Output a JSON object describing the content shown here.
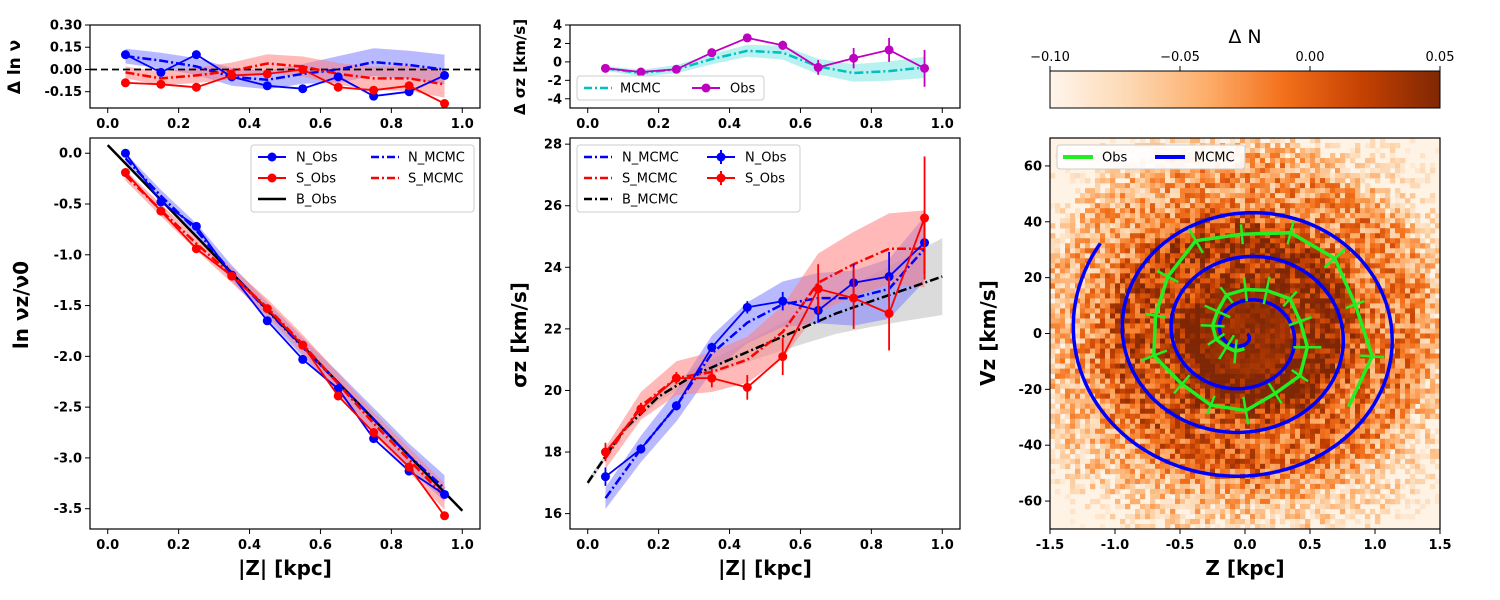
{
  "colors": {
    "north": "#0000ff",
    "south": "#ff0000",
    "both": "#000000",
    "mcmc_cyan": "#00bfbf",
    "obs_magenta": "#c000c0",
    "obs_green": "#22ee22",
    "band_blue": "#7f7fff",
    "band_red": "#ff7f7f",
    "band_grey": "#bdbdbd",
    "band_cyan": "#7fe5e5"
  },
  "chart_data": [
    {
      "id": "dlnnu",
      "type": "line",
      "ylabel": "Δ ln ν",
      "xlim": [
        -0.05,
        1.05
      ],
      "ylim": [
        -0.26,
        0.3
      ],
      "xticks": [
        "0.0",
        "0.2",
        "0.4",
        "0.6",
        "0.8",
        "1.0"
      ],
      "yticks": [
        "0.30",
        "0.15",
        "0.00",
        "-0.15"
      ],
      "x": [
        0.05,
        0.15,
        0.25,
        0.35,
        0.45,
        0.55,
        0.65,
        0.75,
        0.85,
        0.95
      ],
      "series": [
        {
          "name": "N_Obs",
          "values": [
            0.1,
            -0.02,
            0.1,
            -0.05,
            -0.11,
            -0.13,
            -0.05,
            -0.18,
            -0.15,
            -0.04
          ]
        },
        {
          "name": "S_Obs",
          "values": [
            -0.09,
            -0.1,
            -0.12,
            -0.04,
            -0.03,
            0.0,
            -0.12,
            -0.14,
            -0.11,
            -0.23
          ]
        },
        {
          "name": "N_MCMC",
          "values": [
            0.09,
            0.06,
            0.02,
            -0.05,
            -0.07,
            -0.03,
            0.0,
            0.05,
            0.03,
            0.0
          ]
        },
        {
          "name": "S_MCMC",
          "values": [
            -0.02,
            -0.06,
            -0.04,
            -0.01,
            0.04,
            0.02,
            -0.03,
            -0.06,
            -0.06,
            -0.1
          ]
        }
      ],
      "reference_line": 0.0
    },
    {
      "id": "dsigma",
      "type": "line",
      "ylabel": "Δ σz [km/s]",
      "xlim": [
        -0.05,
        1.05
      ],
      "ylim": [
        -5,
        4
      ],
      "xticks": [
        "0.0",
        "0.2",
        "0.4",
        "0.6",
        "0.8",
        "1.0"
      ],
      "yticks": [
        "4",
        "2",
        "0",
        "-2",
        "-4"
      ],
      "x": [
        0.05,
        0.15,
        0.25,
        0.35,
        0.45,
        0.55,
        0.65,
        0.75,
        0.85,
        0.95
      ],
      "legend": [
        "MCMC",
        "Obs"
      ],
      "series": [
        {
          "name": "MCMC",
          "values": [
            -0.7,
            -1.2,
            -0.8,
            0.3,
            1.2,
            1.0,
            -0.5,
            -1.2,
            -1.0,
            -0.6
          ]
        },
        {
          "name": "Obs",
          "values": [
            -0.7,
            -1.1,
            -0.8,
            1.0,
            2.6,
            1.8,
            -0.6,
            0.4,
            1.3,
            -0.7
          ],
          "errors": [
            0.3,
            0.2,
            0.2,
            0.3,
            0.4,
            0.5,
            0.8,
            1.1,
            1.3,
            2.0
          ]
        }
      ]
    },
    {
      "id": "lnnu",
      "type": "line",
      "xlabel": "|Z| [kpc]",
      "ylabel": "ln νz/ν0",
      "xlim": [
        -0.05,
        1.05
      ],
      "ylim": [
        -3.7,
        0.15
      ],
      "xticks": [
        "0.0",
        "0.2",
        "0.4",
        "0.6",
        "0.8",
        "1.0"
      ],
      "yticks": [
        "0.0",
        "-0.5",
        "-1.0",
        "-1.5",
        "-2.0",
        "-2.5",
        "-3.0",
        "-3.5"
      ],
      "x": [
        0.05,
        0.15,
        0.25,
        0.35,
        0.45,
        0.55,
        0.65,
        0.75,
        0.85,
        0.95
      ],
      "legend": [
        "N_Obs",
        "N_MCMC",
        "S_Obs",
        "S_MCMC",
        "B_Obs"
      ],
      "series": [
        {
          "name": "N_Obs",
          "values": [
            0.0,
            -0.48,
            -0.72,
            -1.2,
            -1.65,
            -2.03,
            -2.32,
            -2.81,
            -3.13,
            -3.36
          ]
        },
        {
          "name": "S_Obs",
          "values": [
            -0.19,
            -0.57,
            -0.94,
            -1.21,
            -1.53,
            -1.89,
            -2.39,
            -2.75,
            -3.09,
            -3.57
          ]
        },
        {
          "name": "N_MCMC",
          "values": [
            -0.05,
            -0.42,
            -0.76,
            -1.18,
            -1.55,
            -1.91,
            -2.26,
            -2.62,
            -2.98,
            -3.3
          ]
        },
        {
          "name": "S_MCMC",
          "values": [
            -0.22,
            -0.56,
            -0.89,
            -1.2,
            -1.52,
            -1.88,
            -2.27,
            -2.66,
            -3.02,
            -3.38
          ]
        },
        {
          "name": "B_Obs",
          "x": [
            0.0,
            1.0
          ],
          "values": [
            0.08,
            -3.52
          ]
        }
      ]
    },
    {
      "id": "sigma",
      "type": "line",
      "xlabel": "|Z| [kpc]",
      "ylabel": "σz [km/s]",
      "xlim": [
        -0.05,
        1.05
      ],
      "ylim": [
        15.5,
        28.2
      ],
      "xticks": [
        "0.0",
        "0.2",
        "0.4",
        "0.6",
        "0.8",
        "1.0"
      ],
      "yticks": [
        "28",
        "26",
        "24",
        "22",
        "20",
        "18",
        "16"
      ],
      "x": [
        0.05,
        0.15,
        0.25,
        0.35,
        0.45,
        0.55,
        0.65,
        0.75,
        0.85,
        0.95
      ],
      "legend": [
        "N_MCMC",
        "N_Obs",
        "S_MCMC",
        "S_Obs",
        "B_MCMC"
      ],
      "series": [
        {
          "name": "N_Obs",
          "values": [
            17.2,
            18.1,
            19.5,
            21.4,
            22.7,
            22.9,
            22.6,
            23.5,
            23.7,
            24.8
          ],
          "errors": [
            0.3,
            0.15,
            0.15,
            0.15,
            0.2,
            0.3,
            0.4,
            0.6,
            0.8,
            1.0
          ]
        },
        {
          "name": "S_Obs",
          "values": [
            18.0,
            19.4,
            20.4,
            20.4,
            20.1,
            21.1,
            23.3,
            23.0,
            22.5,
            25.6
          ],
          "errors": [
            0.3,
            0.2,
            0.2,
            0.3,
            0.4,
            0.6,
            0.8,
            1.0,
            1.2,
            2.0
          ]
        },
        {
          "name": "N_MCMC",
          "x": [
            0.05,
            0.15,
            0.25,
            0.35,
            0.45,
            0.55,
            0.65,
            0.75,
            0.85,
            0.95
          ],
          "values": [
            16.5,
            18.1,
            19.5,
            21.2,
            22.2,
            22.8,
            23.0,
            23.0,
            23.3,
            24.6
          ]
        },
        {
          "name": "S_MCMC",
          "x": [
            0.05,
            0.15,
            0.25,
            0.35,
            0.45,
            0.55,
            0.65,
            0.75,
            0.85,
            0.95
          ],
          "values": [
            17.8,
            19.5,
            20.4,
            20.6,
            21.0,
            21.9,
            23.5,
            24.1,
            24.6,
            24.6
          ]
        },
        {
          "name": "B_MCMC",
          "x": [
            0.0,
            0.1,
            0.2,
            0.3,
            0.4,
            0.5,
            0.6,
            0.7,
            0.8,
            0.9,
            1.0
          ],
          "values": [
            17.0,
            18.7,
            19.8,
            20.5,
            21.0,
            21.5,
            22.0,
            22.5,
            22.9,
            23.3,
            23.7
          ]
        }
      ]
    },
    {
      "id": "phase",
      "type": "heatmap",
      "xlabel": "Z [kpc]",
      "ylabel": "Vz [km/s]",
      "xlim": [
        -1.5,
        1.5
      ],
      "ylim": [
        -70,
        70
      ],
      "xticks": [
        "-1.5",
        "-1.0",
        "-0.5",
        "0.0",
        "0.5",
        "1.0",
        "1.5"
      ],
      "yticks": [
        "60",
        "40",
        "20",
        "0",
        "-20",
        "-40",
        "-60"
      ],
      "legend": [
        "Obs",
        "MCMC"
      ],
      "colorbar": {
        "label": "Δ N",
        "range": [
          -0.1,
          0.05
        ],
        "ticks": [
          "−0.10",
          "−0.05",
          "0.00",
          "0.05"
        ]
      },
      "spiral_model": {
        "name": "MCMC",
        "z_kpc_per_rad": 0.06,
        "vz_kms_per_rad": 2.5,
        "turns": 3.6
      },
      "spiral_obs": {
        "name": "Obs",
        "z_kpc_per_rad": 0.075,
        "vz_kms_per_rad": 3.4,
        "turns": 2.1
      }
    }
  ]
}
